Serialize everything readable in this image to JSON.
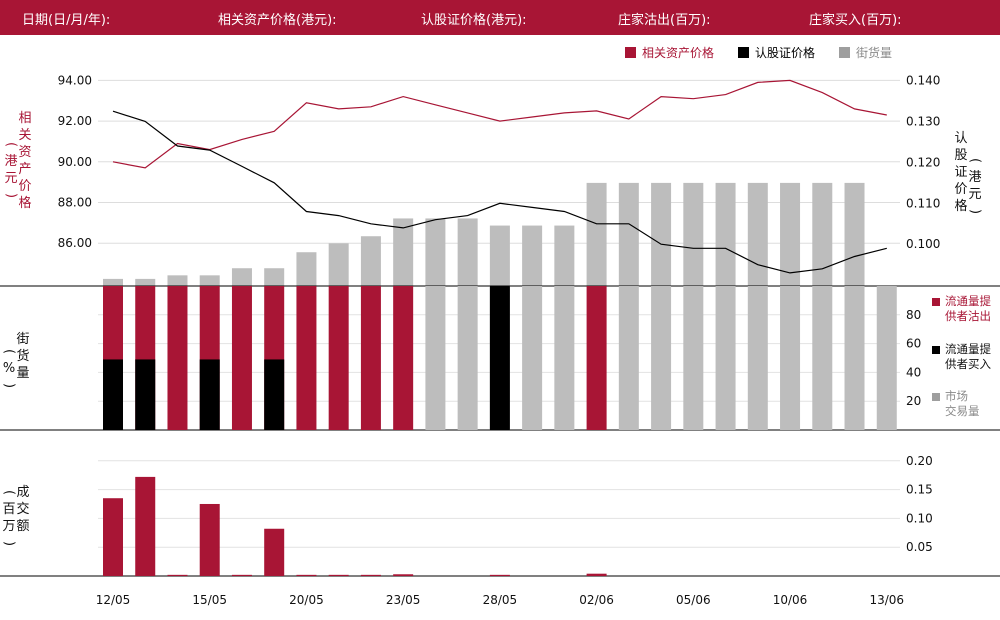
{
  "header": {
    "date": "日期(日/月/年):",
    "underlying": "相关资产价格(港元):",
    "warrant": "认股证价格(港元):",
    "lp_sell": "庄家沽出(百万):",
    "lp_buy": "庄家买入(百万):"
  },
  "colors": {
    "brand": "#a81535",
    "black": "#000000",
    "grey": "#bdbdbd",
    "legend_grey": "#9e9e9e"
  },
  "legend": {
    "underlying": "相关资产价格",
    "warrant": "认股证价格",
    "outstanding": "街货量"
  },
  "axis_titles": {
    "left_top": [
      "相",
      "关",
      "资",
      "产",
      "价",
      "格"
    ],
    "left_top_paren": [
      "(",
      "港",
      "元",
      ")"
    ],
    "right_top": [
      "认",
      "股",
      "证",
      "价",
      "格"
    ],
    "right_top_paren": [
      "(",
      "港",
      "元",
      ")"
    ],
    "mid": [
      "街",
      "货",
      "量"
    ],
    "mid_paren": [
      "(",
      "%",
      ")"
    ],
    "bottom": [
      "成",
      "交",
      "额"
    ],
    "bottom_paren": [
      "(",
      "百",
      "万",
      ")"
    ]
  },
  "mid_legend": {
    "lp_sell": [
      "流通量提",
      "供者沽出"
    ],
    "lp_buy": [
      "流通量提",
      "供者买入"
    ],
    "market": [
      "市场",
      "交易量"
    ]
  },
  "chart_data": {
    "type": "bar",
    "x_labels": [
      "12/05",
      "15/05",
      "20/05",
      "23/05",
      "28/05",
      "02/06",
      "05/06",
      "10/06",
      "13/06"
    ],
    "x_label_positions": [
      0,
      3,
      6,
      9,
      12,
      15,
      18,
      21,
      24
    ],
    "panels": [
      {
        "name": "price",
        "left_axis": {
          "ticks": [
            "94.00",
            "92.00",
            "90.00",
            "88.00",
            "86.00"
          ],
          "range": [
            83.9,
            95.0
          ]
        },
        "right_axis": {
          "ticks": [
            "0.140",
            "0.130",
            "0.120",
            "0.110",
            "0.100"
          ],
          "range": [
            0.0898,
            0.145
          ]
        },
        "series": [
          {
            "name": "相关资产价格",
            "axis": "left",
            "type": "line",
            "values": [
              90.0,
              89.7,
              90.9,
              90.6,
              91.1,
              91.5,
              92.9,
              92.6,
              92.7,
              93.2,
              92.8,
              92.4,
              92.0,
              92.2,
              92.4,
              92.5,
              92.1,
              93.2,
              93.1,
              93.3,
              93.9,
              94.0,
              93.4,
              92.6,
              92.3
            ]
          },
          {
            "name": "认股证价格",
            "axis": "right",
            "type": "line",
            "values": [
              0.1325,
              0.13,
              0.124,
              0.123,
              0.119,
              0.115,
              0.108,
              0.107,
              0.105,
              0.104,
              0.106,
              0.107,
              0.11,
              0.109,
              0.108,
              0.105,
              0.105,
              0.1,
              0.099,
              0.099,
              0.095,
              0.093,
              0.094,
              0.097,
              0.099
            ]
          },
          {
            "name": "街货量",
            "axis": "outstanding",
            "type": "bar",
            "max_ref": 58.5,
            "values": [
              4,
              4,
              6,
              6,
              10,
              10,
              19,
              24,
              28,
              38,
              38,
              38,
              34,
              34,
              34,
              58,
              58,
              58,
              58,
              58,
              58,
              58,
              58,
              58,
              0
            ]
          }
        ]
      },
      {
        "name": "outstanding_pct",
        "y_ticks": [
          80,
          60,
          40,
          20
        ],
        "range": [
          0,
          100
        ],
        "series": [
          {
            "name": "流通量提供者沽出",
            "type": "bar",
            "values": [
              100,
              100,
              100,
              100,
              100,
              100,
              100,
              100,
              100,
              100,
              0,
              0,
              0,
              0,
              0,
              100,
              0,
              0,
              0,
              0,
              0,
              0,
              0,
              0,
              0
            ]
          },
          {
            "name": "流通量提供者买入",
            "type": "bar",
            "values": [
              49,
              49,
              0,
              49,
              0,
              49,
              0,
              0,
              0,
              0,
              0,
              0,
              100,
              0,
              0,
              0,
              0,
              0,
              0,
              0,
              0,
              0,
              0,
              0,
              0
            ]
          },
          {
            "name": "市场交易量",
            "type": "bar",
            "values": [
              0,
              0,
              0,
              0,
              0,
              0,
              0,
              0,
              0,
              0,
              100,
              100,
              100,
              100,
              100,
              0,
              100,
              100,
              100,
              100,
              100,
              100,
              100,
              100,
              100
            ]
          }
        ]
      },
      {
        "name": "turnover",
        "y_ticks": [
          "0.20",
          "0.15",
          "0.10",
          "0.05"
        ],
        "range": [
          0,
          0.21
        ],
        "series": [
          {
            "name": "成交额",
            "type": "bar",
            "values": [
              0.135,
              0.172,
              0.002,
              0.125,
              0.002,
              0.082,
              0.002,
              0.002,
              0.002,
              0.003,
              0,
              0,
              0.002,
              0,
              0,
              0.004,
              0,
              0,
              0,
              0,
              0,
              0,
              0,
              0,
              0
            ]
          }
        ]
      }
    ],
    "grid": true
  }
}
